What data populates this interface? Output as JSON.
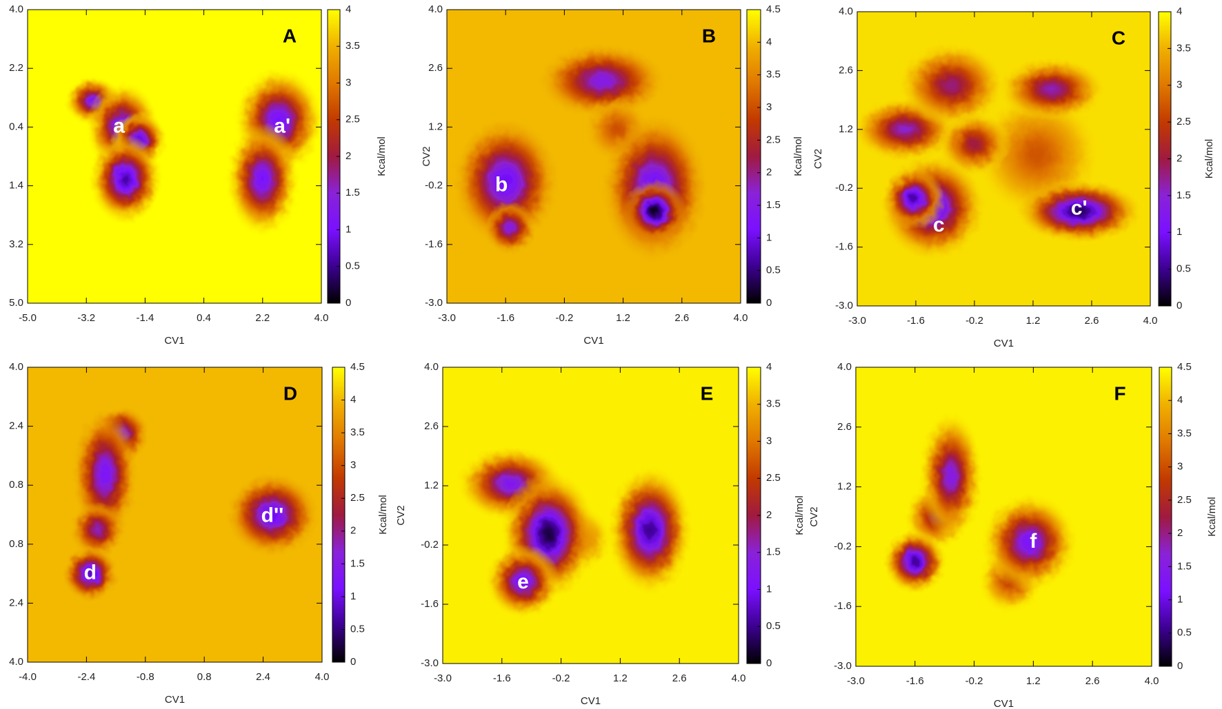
{
  "colormap": [
    "#000000",
    "#3c0090",
    "#7a10ff",
    "#8a22d8",
    "#a01a40",
    "#c23a00",
    "#e07800",
    "#f0b000",
    "#ffff00"
  ],
  "chart_data": [
    {
      "type": "heatmap",
      "panel": "A",
      "xlabel": "CV1",
      "zlabel": "Kcal/mol",
      "xlim": [
        -5,
        4
      ],
      "ylim": [
        -5,
        4
      ],
      "xticks": [
        {
          "value": -5,
          "label": "-5.0"
        },
        -3.2,
        -1.4,
        0.4,
        2.2,
        {
          "value": 4,
          "label": "4.0"
        }
      ],
      "yticks": [
        {
          "value": 4,
          "label": "4.0"
        },
        2.2,
        0.4,
        {
          "value": -1.4,
          "label": "1.4"
        },
        {
          "value": -3.2,
          "label": "3.2"
        },
        {
          "value": -5,
          "label": "5.0"
        }
      ],
      "clim": [
        0,
        4
      ],
      "cticks": [
        0,
        0.5,
        1,
        1.5,
        2,
        2.5,
        3,
        3.5,
        4
      ],
      "plateau": 4,
      "wells": [
        {
          "x": -3.0,
          "y": 1.2,
          "sx": 0.35,
          "sy": 0.3,
          "depth": 1.2
        },
        {
          "x": -2.1,
          "y": 0.4,
          "sx": 0.45,
          "sy": 0.55,
          "depth": 1.0
        },
        {
          "x": -1.6,
          "y": 0.0,
          "sx": 0.35,
          "sy": 0.35,
          "depth": 0.8
        },
        {
          "x": -2.0,
          "y": -1.2,
          "sx": 0.45,
          "sy": 0.55,
          "depth": 0.6
        },
        {
          "x": 2.7,
          "y": 0.6,
          "sx": 0.55,
          "sy": 0.65,
          "depth": 1.0
        },
        {
          "x": 2.2,
          "y": -1.2,
          "sx": 0.45,
          "sy": 0.7,
          "depth": 1.0
        }
      ],
      "annotations": [
        {
          "text": "a",
          "x": -2.2,
          "y": 0.4
        },
        {
          "text": "a'",
          "x": 2.8,
          "y": 0.4
        }
      ]
    },
    {
      "type": "heatmap",
      "panel": "B",
      "xlabel": "CV1",
      "ylabel": "CV2",
      "zlabel": "Kcal/mol",
      "xlim": [
        -3,
        4
      ],
      "ylim": [
        -3,
        4
      ],
      "xticks": [
        {
          "value": -3,
          "label": "-3.0"
        },
        -1.6,
        -0.2,
        1.2,
        2.6,
        {
          "value": 4,
          "label": "4.0"
        }
      ],
      "yticks": [
        {
          "value": -3,
          "label": "-3.0"
        },
        -1.6,
        -0.2,
        1.2,
        2.6,
        {
          "value": 4,
          "label": "4.0"
        }
      ],
      "clim": [
        0,
        4.5
      ],
      "cticks": [
        0,
        0.5,
        1,
        1.5,
        2,
        2.5,
        3,
        3.5,
        4,
        4.5
      ],
      "plateau": 4.0,
      "wells": [
        {
          "x": 0.7,
          "y": 2.3,
          "sx": 0.6,
          "sy": 0.35,
          "depth": 1.5
        },
        {
          "x": 1.05,
          "y": 1.15,
          "sx": 0.3,
          "sy": 0.3,
          "depth": 3.0
        },
        {
          "x": -1.6,
          "y": -0.1,
          "sx": 0.5,
          "sy": 0.6,
          "depth": 1.0
        },
        {
          "x": -1.5,
          "y": -1.2,
          "sx": 0.25,
          "sy": 0.25,
          "depth": 1.5
        },
        {
          "x": 1.95,
          "y": -0.25,
          "sx": 0.5,
          "sy": 0.7,
          "depth": 1.0
        },
        {
          "x": 1.95,
          "y": -0.8,
          "sx": 0.3,
          "sy": 0.3,
          "depth": 0.1
        }
      ],
      "annotations": [
        {
          "text": "b",
          "x": -1.7,
          "y": -0.2
        }
      ]
    },
    {
      "type": "heatmap",
      "panel": "C",
      "xlabel": "CV1",
      "ylabel": "CV2",
      "zlabel": "Kcal/mol",
      "xlim": [
        -3,
        4
      ],
      "ylim": [
        -3,
        4
      ],
      "xticks": [
        {
          "value": -3,
          "label": "-3.0"
        },
        -1.6,
        -0.2,
        1.2,
        2.6,
        {
          "value": 4,
          "label": "4.0"
        }
      ],
      "yticks": [
        {
          "value": -3,
          "label": "-3.0"
        },
        -1.6,
        -0.2,
        1.2,
        2.6,
        {
          "value": 4,
          "label": "4.0"
        }
      ],
      "clim": [
        0,
        4
      ],
      "cticks": [
        0,
        0.5,
        1,
        1.5,
        2,
        2.5,
        3,
        3.5,
        4
      ],
      "plateau": 3.8,
      "wells": [
        {
          "x": 1.3,
          "y": 0.6,
          "sx": 0.6,
          "sy": 0.6,
          "depth": 2.7
        },
        {
          "x": -1.85,
          "y": 1.2,
          "sx": 0.5,
          "sy": 0.3,
          "depth": 1.5
        },
        {
          "x": -0.75,
          "y": 2.25,
          "sx": 0.5,
          "sy": 0.4,
          "depth": 1.8
        },
        {
          "x": -0.2,
          "y": 0.85,
          "sx": 0.35,
          "sy": 0.3,
          "depth": 2.0
        },
        {
          "x": 1.65,
          "y": 2.15,
          "sx": 0.5,
          "sy": 0.3,
          "depth": 1.6
        },
        {
          "x": -1.2,
          "y": -0.65,
          "sx": 0.5,
          "sy": 0.5,
          "depth": 0.8
        },
        {
          "x": -1.65,
          "y": -0.45,
          "sx": 0.3,
          "sy": 0.3,
          "depth": 0.6
        },
        {
          "x": 2.3,
          "y": -0.75,
          "sx": 0.6,
          "sy": 0.3,
          "depth": 0.3
        }
      ],
      "annotations": [
        {
          "text": "c",
          "x": -1.05,
          "y": -1.1
        },
        {
          "text": "c'",
          "x": 2.3,
          "y": -0.7
        }
      ]
    },
    {
      "type": "heatmap",
      "panel": "D",
      "xlabel": "CV1",
      "zlabel": "Kcal/mol",
      "xlim": [
        -4,
        4
      ],
      "ylim": [
        -4,
        4
      ],
      "xticks": [
        {
          "value": -4,
          "label": "-4.0"
        },
        -2.4,
        -0.8,
        0.8,
        2.4,
        {
          "value": 4,
          "label": "4.0"
        }
      ],
      "yticks": [
        {
          "value": 4,
          "label": "4.0"
        },
        2.4,
        0.8,
        {
          "value": -0.8,
          "label": "0.8"
        },
        {
          "value": -2.4,
          "label": "2.4"
        },
        {
          "value": -4,
          "label": "4.0"
        }
      ],
      "clim": [
        0,
        4.5
      ],
      "cticks": [
        0,
        0.5,
        1,
        1.5,
        2,
        2.5,
        3,
        3.5,
        4,
        4.5
      ],
      "plateau": 4.0,
      "wells": [
        {
          "x": -1.45,
          "y": 2.2,
          "sx": 0.3,
          "sy": 0.3,
          "depth": 1.5
        },
        {
          "x": -1.9,
          "y": 1.1,
          "sx": 0.35,
          "sy": 0.7,
          "depth": 1.2
        },
        {
          "x": -2.1,
          "y": -0.4,
          "sx": 0.3,
          "sy": 0.3,
          "depth": 1.8
        },
        {
          "x": -2.3,
          "y": -1.6,
          "sx": 0.3,
          "sy": 0.3,
          "depth": 0.8
        },
        {
          "x": 2.65,
          "y": 0.0,
          "sx": 0.5,
          "sy": 0.45,
          "depth": 1.0
        }
      ],
      "annotations": [
        {
          "text": "d",
          "x": -2.3,
          "y": -1.6
        },
        {
          "text": "d''",
          "x": 2.65,
          "y": -0.05
        }
      ]
    },
    {
      "type": "heatmap",
      "panel": "E",
      "xlabel": "CV1",
      "ylabel": "CV2",
      "zlabel": "Kcal/mol",
      "xlim": [
        -3,
        4
      ],
      "ylim": [
        -3,
        4
      ],
      "xticks": [
        {
          "value": -3,
          "label": "-3.0"
        },
        -1.6,
        -0.2,
        1.2,
        2.6,
        {
          "value": 4,
          "label": "4.0"
        }
      ],
      "yticks": [
        {
          "value": -3,
          "label": "-3.0"
        },
        -1.6,
        -0.2,
        1.2,
        2.6,
        {
          "value": 4,
          "label": "4.0"
        }
      ],
      "clim": [
        0,
        4
      ],
      "cticks": [
        0,
        0.5,
        1,
        1.5,
        2,
        2.5,
        3,
        3.5,
        4
      ],
      "plateau": 3.9,
      "wells": [
        {
          "x": 0.25,
          "y": -0.05,
          "sx": 0.3,
          "sy": 0.3,
          "depth": 2.8
        },
        {
          "x": -1.4,
          "y": 1.25,
          "sx": 0.5,
          "sy": 0.35,
          "depth": 1.2
        },
        {
          "x": -0.5,
          "y": 0.05,
          "sx": 0.45,
          "sy": 0.6,
          "depth": 0.2
        },
        {
          "x": -1.1,
          "y": -1.05,
          "sx": 0.35,
          "sy": 0.35,
          "depth": 1.0
        },
        {
          "x": 1.9,
          "y": 0.15,
          "sx": 0.4,
          "sy": 0.6,
          "depth": 0.5
        }
      ],
      "annotations": [
        {
          "text": "e",
          "x": -1.1,
          "y": -1.1
        }
      ]
    },
    {
      "type": "heatmap",
      "panel": "F",
      "xlabel": "CV1",
      "ylabel": "CV2",
      "zlabel": "Kcal/mol",
      "xlim": [
        -3,
        4
      ],
      "ylim": [
        -3,
        4
      ],
      "xticks": [
        {
          "value": -3,
          "label": "-3.0"
        },
        -1.6,
        -0.2,
        1.2,
        2.6,
        {
          "value": 4,
          "label": "4.0"
        }
      ],
      "yticks": [
        {
          "value": -3,
          "label": "-3.0"
        },
        -1.6,
        -0.2,
        1.2,
        2.6,
        {
          "value": 4,
          "label": "4.0"
        }
      ],
      "clim": [
        0,
        4.5
      ],
      "cticks": [
        0,
        0.5,
        1,
        1.5,
        2,
        2.5,
        3,
        3.5,
        4,
        4.5
      ],
      "plateau": 4.4,
      "wells": [
        {
          "x": 0.65,
          "y": -1.0,
          "sx": 0.3,
          "sy": 0.3,
          "depth": 2.8
        },
        {
          "x": -1.1,
          "y": 0.5,
          "sx": 0.3,
          "sy": 0.3,
          "depth": 2.2
        },
        {
          "x": -0.75,
          "y": 1.45,
          "sx": 0.3,
          "sy": 0.6,
          "depth": 1.5
        },
        {
          "x": -1.6,
          "y": -0.55,
          "sx": 0.3,
          "sy": 0.3,
          "depth": 0.6
        },
        {
          "x": 1.1,
          "y": -0.1,
          "sx": 0.45,
          "sy": 0.45,
          "depth": 1.2
        }
      ],
      "annotations": [
        {
          "text": "f",
          "x": 1.2,
          "y": -0.1
        }
      ]
    }
  ]
}
